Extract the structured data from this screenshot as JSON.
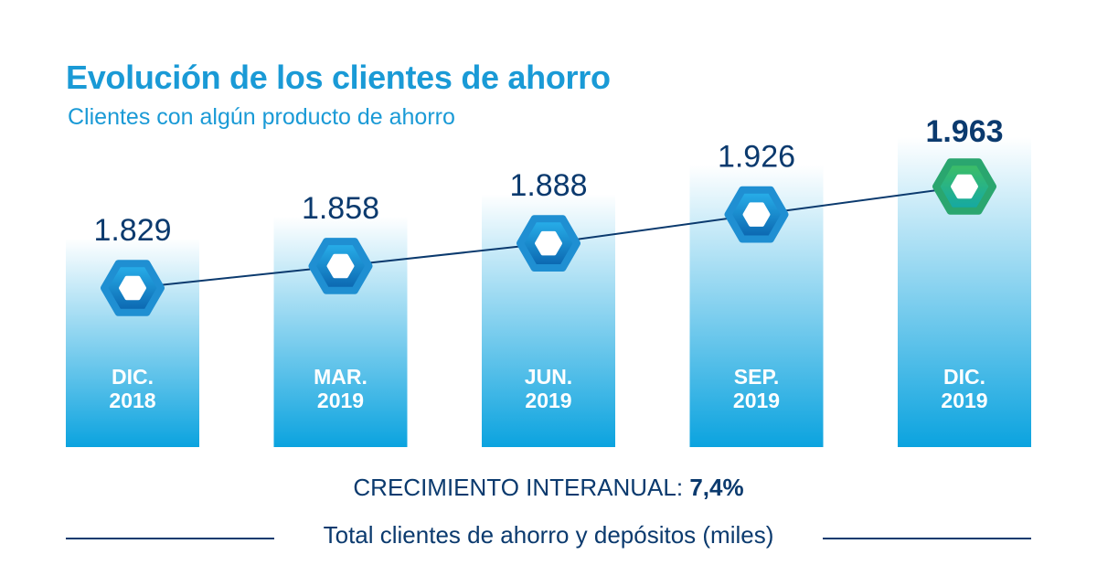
{
  "title": "Evolución de los clientes de ahorro",
  "subtitle": "Clientes con algún producto de ahorro",
  "growth": {
    "label": "CRECIMIENTO INTERANUAL: ",
    "value": "7,4%"
  },
  "footer": "Total clientes de ahorro y depósitos (miles)",
  "colors": {
    "title": "#1a9ad6",
    "text_dark": "#0b3a6e",
    "bar_top": "#ffffff",
    "bar_bottom": "#0ba3df",
    "hex_blue": "#1a9ad6",
    "hex_green": "#2bb07d",
    "line": "#0b3a6e"
  },
  "chart_data": {
    "type": "line",
    "categories": [
      [
        "DIC.",
        "2018"
      ],
      [
        "MAR.",
        "2019"
      ],
      [
        "JUN.",
        "2019"
      ],
      [
        "SEP.",
        "2019"
      ],
      [
        "DIC.",
        "2019"
      ]
    ],
    "values": [
      1829,
      1858,
      1888,
      1926,
      1963
    ],
    "value_labels": [
      "1.829",
      "1.858",
      "1.888",
      "1.926",
      "1.963"
    ],
    "highlight_index": 4,
    "xlabel": "Total clientes de ahorro y depósitos (miles)",
    "ylabel": "",
    "grid": false
  }
}
